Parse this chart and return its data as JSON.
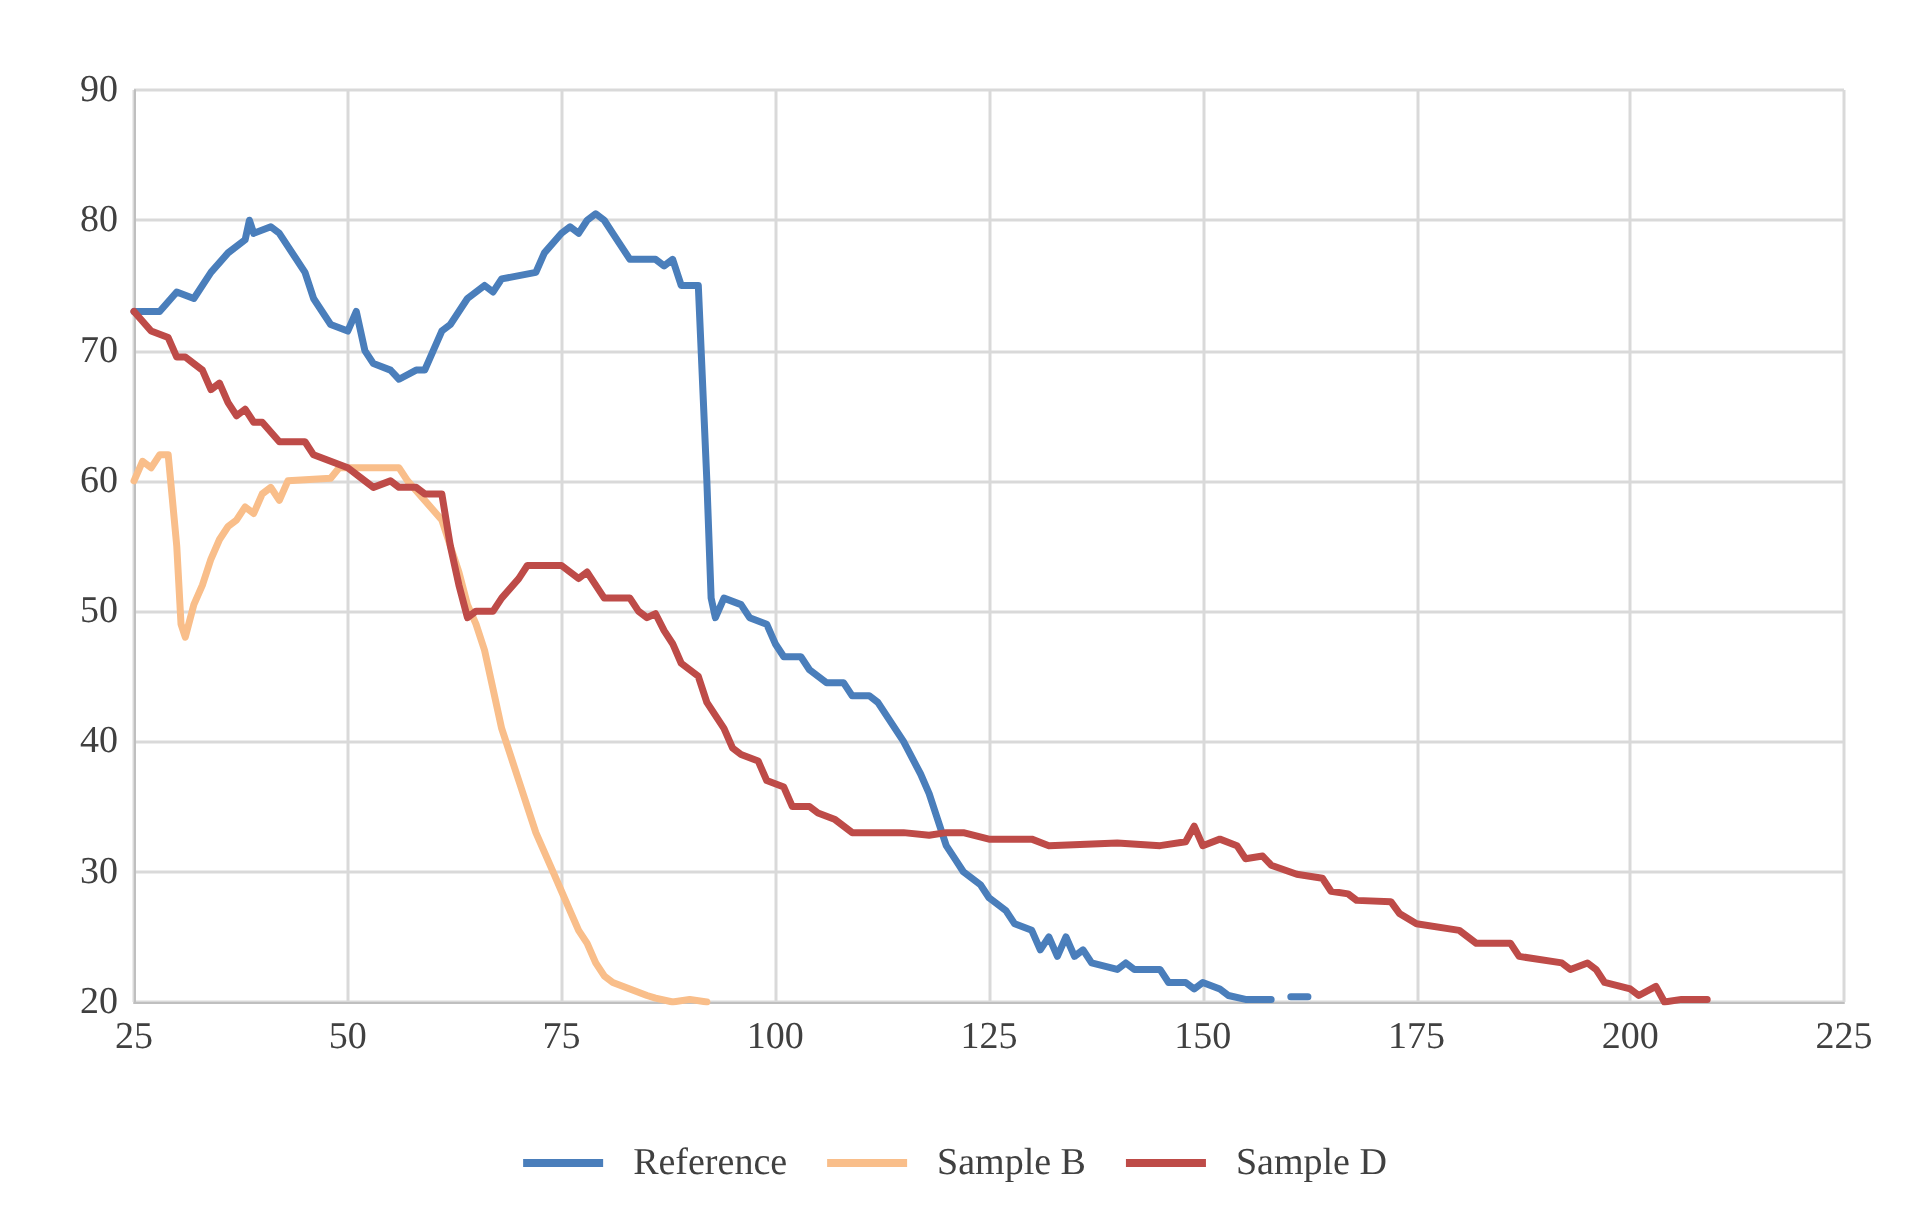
{
  "chart_data": {
    "type": "line",
    "xlim": [
      25,
      225
    ],
    "xticks": [
      25,
      50,
      75,
      100,
      125,
      150,
      175,
      200,
      225
    ],
    "ylim": [
      20,
      90
    ],
    "yticks": [
      20,
      30,
      40,
      50,
      60,
      70,
      80,
      90
    ],
    "grid": true,
    "legend": "bottom",
    "marker": "none",
    "line_style": "solid",
    "series": [
      {
        "name": "Reference",
        "color": "#4a7ebb",
        "x": [
          25,
          28,
          30,
          32,
          34,
          36,
          38,
          38.5,
          39,
          41,
          42,
          43,
          45,
          46,
          48,
          50,
          51,
          52,
          53,
          55,
          56,
          58,
          59,
          60,
          61,
          62,
          63,
          64,
          66,
          67,
          68,
          72,
          73,
          75,
          76,
          77,
          78,
          79,
          80,
          81,
          82,
          83,
          86,
          87,
          88,
          89,
          91,
          92,
          92.5,
          93,
          94,
          96,
          97,
          99,
          100,
          101,
          103,
          104,
          106,
          108,
          109,
          111,
          112,
          113,
          115,
          117,
          118,
          119,
          120,
          121,
          122,
          124,
          125,
          127,
          128,
          130,
          131,
          132,
          133,
          134,
          135,
          136,
          137,
          140,
          141,
          142,
          145,
          146,
          148,
          149,
          150,
          152,
          153,
          155,
          158,
          159,
          160.3,
          162.3
        ],
        "values": [
          73,
          73,
          74.5,
          74,
          76,
          77.5,
          78.5,
          80,
          79,
          79.5,
          79,
          78,
          76,
          74,
          72,
          71.5,
          73,
          70,
          69,
          68.5,
          67.8,
          68.5,
          68.5,
          70,
          71.5,
          72,
          73,
          74,
          75,
          74.5,
          75.5,
          76,
          77.5,
          79,
          79.5,
          79,
          80,
          80.5,
          80,
          79,
          78,
          77,
          77,
          76.5,
          77,
          75,
          75,
          60,
          51,
          49.5,
          51,
          50.5,
          49.5,
          49,
          47.5,
          46.5,
          46.5,
          45.5,
          44.5,
          44.5,
          43.5,
          43.5,
          43,
          42,
          40,
          37.5,
          36,
          34,
          32,
          31,
          30,
          29,
          28,
          27,
          26,
          25.5,
          24,
          25,
          23.5,
          25,
          23.5,
          24,
          23,
          22.5,
          23,
          22.5,
          22.5,
          21.5,
          21.5,
          21,
          21.5,
          21,
          20.5,
          20.2,
          20.2,
          null,
          20.4,
          20.4
        ]
      },
      {
        "name": "Sample B",
        "color": "#f9be8a",
        "x": [
          25,
          26,
          27,
          28,
          29,
          30,
          30.5,
          31,
          32,
          33,
          34,
          35,
          36,
          37,
          38,
          39,
          40,
          41,
          42,
          43,
          48,
          49,
          56,
          57,
          59,
          61,
          62,
          63,
          64,
          65,
          66,
          67,
          68,
          69,
          70,
          71,
          72,
          73,
          74,
          75,
          76,
          77,
          78,
          79,
          80,
          81,
          83,
          85,
          86,
          88,
          90,
          92
        ],
        "values": [
          60,
          61.5,
          61,
          62,
          62,
          55,
          49,
          48,
          50.5,
          52,
          54,
          55.5,
          56.5,
          57,
          58,
          57.5,
          59,
          59.5,
          58.5,
          60,
          60.2,
          61,
          61,
          60,
          58.5,
          57,
          55,
          53,
          50.5,
          49,
          47,
          44,
          41,
          39,
          37,
          35,
          33,
          31.5,
          30,
          28.5,
          27,
          25.5,
          24.5,
          23,
          22,
          21.5,
          21,
          20.5,
          20.3,
          20,
          20.2,
          20
        ]
      },
      {
        "name": "Sample D",
        "color": "#be4b48",
        "x": [
          25,
          27,
          29,
          30,
          31,
          32,
          33,
          34,
          35,
          36,
          37,
          38,
          39,
          40,
          42,
          45,
          46,
          48,
          50,
          52,
          53,
          55,
          56,
          58,
          59,
          61,
          62,
          63,
          64,
          65,
          67,
          68,
          70,
          71,
          75,
          77,
          78,
          80,
          83,
          84,
          85,
          86,
          87,
          88,
          89,
          91,
          92,
          93,
          94,
          95,
          96,
          98,
          99,
          101,
          102,
          104,
          105,
          107,
          109,
          112,
          115,
          118,
          120,
          122,
          125,
          130,
          132,
          140,
          145,
          148,
          149,
          150,
          152,
          154,
          155,
          157,
          158,
          161,
          164,
          165,
          167,
          168,
          172,
          173,
          175,
          180,
          182,
          186,
          187,
          192,
          193,
          195,
          196,
          197,
          200,
          201,
          203,
          204,
          206,
          209
        ],
        "values": [
          73,
          71.5,
          71,
          69.5,
          69.5,
          69,
          68.5,
          67,
          67.5,
          66,
          65,
          65.5,
          64.5,
          64.5,
          63,
          63,
          62,
          61.5,
          61,
          60,
          59.5,
          60,
          59.5,
          59.5,
          59,
          59,
          55,
          52,
          49.5,
          50,
          50,
          51,
          52.5,
          53.5,
          53.5,
          52.5,
          53,
          51,
          51,
          50,
          49.5,
          49.8,
          48.5,
          47.5,
          46,
          45,
          43,
          42,
          41,
          39.5,
          39,
          38.5,
          37,
          36.5,
          35,
          35,
          34.5,
          34,
          33,
          33,
          33,
          32.8,
          33,
          33,
          32.5,
          32.5,
          32,
          32.2,
          32,
          32.3,
          33.5,
          32,
          32.5,
          32,
          31,
          31.2,
          30.5,
          29.8,
          29.5,
          28.5,
          28.3,
          27.8,
          27.7,
          26.8,
          26,
          25.5,
          24.5,
          24.5,
          23.5,
          23,
          22.5,
          23,
          22.5,
          21.5,
          21,
          20.5,
          21.2,
          20,
          20.2,
          20.2
        ]
      }
    ]
  }
}
